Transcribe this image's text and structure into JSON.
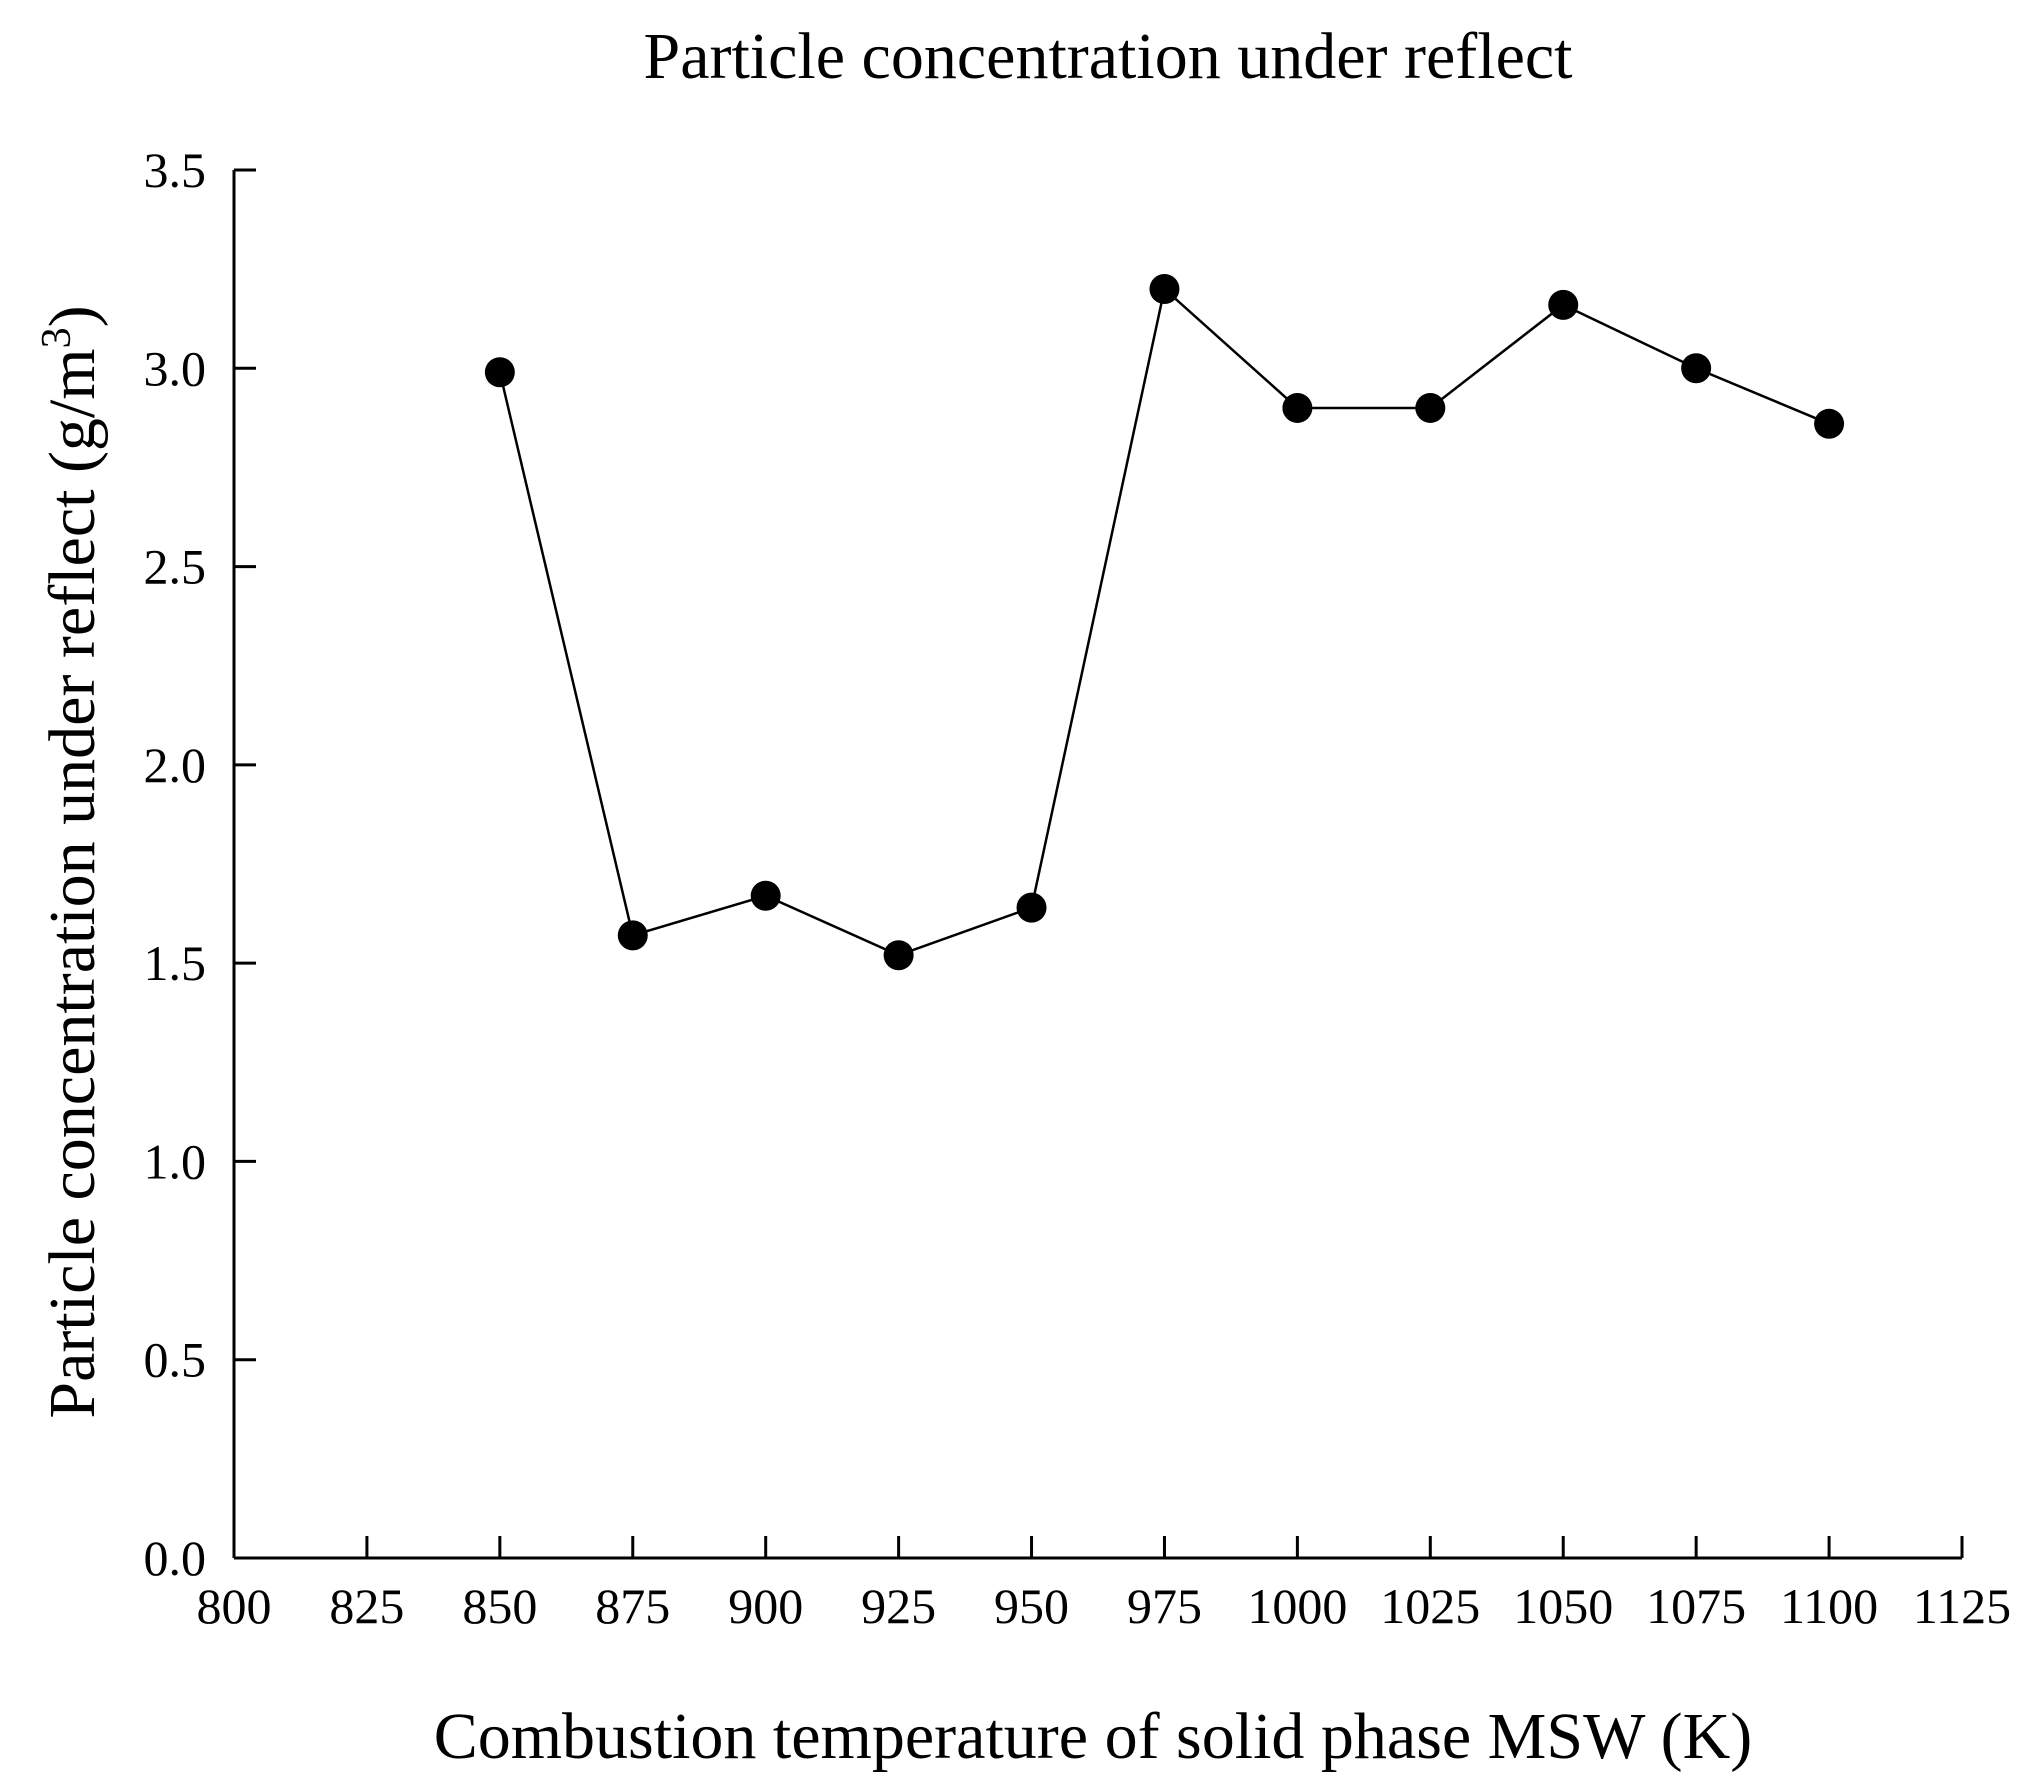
{
  "chart_data": {
    "type": "line",
    "title": "Particle concentration under reflect",
    "xlabel": "Combustion temperature of solid phase MSW (K)",
    "ylabel": {
      "main": "Particle concentration under reflect (g/m",
      "superscript": "3",
      "close": ")"
    },
    "xlim": [
      800,
      1125
    ],
    "ylim": [
      0.0,
      3.5
    ],
    "x_ticks": [
      800,
      825,
      850,
      875,
      900,
      925,
      950,
      975,
      1000,
      1025,
      1050,
      1075,
      1100,
      1125
    ],
    "y_ticks": [
      0.0,
      0.5,
      1.0,
      1.5,
      2.0,
      2.5,
      3.0,
      3.5
    ],
    "y_tick_labels": [
      "0.0",
      "0.5",
      "1.0",
      "1.5",
      "2.0",
      "2.5",
      "3.0",
      "3.5"
    ],
    "grid": false,
    "series": [
      {
        "name": "Particle concentration",
        "marker": "filled-circle",
        "color": "#000000",
        "x": [
          850,
          875,
          900,
          925,
          950,
          975,
          1000,
          1025,
          1050,
          1075,
          1100
        ],
        "y": [
          2.99,
          1.57,
          1.67,
          1.52,
          1.64,
          3.2,
          2.9,
          2.9,
          3.16,
          3.0,
          2.86
        ]
      }
    ]
  }
}
